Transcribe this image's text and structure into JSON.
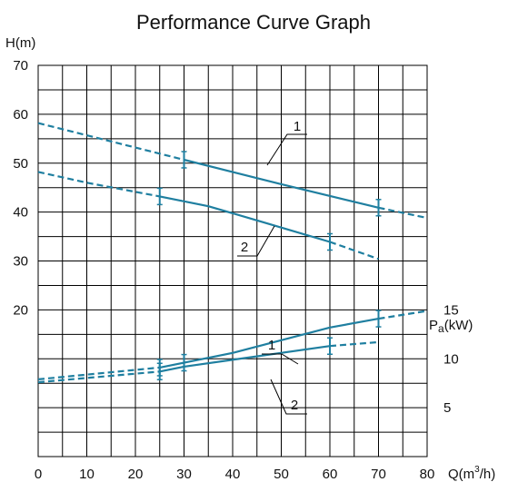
{
  "colors": {
    "curve": "#1f7fa0",
    "grid": "#000000",
    "text": "#111111"
  },
  "chart_data": {
    "type": "line",
    "title": "Performance Curve Graph",
    "grid": true,
    "xlabel": {
      "main": "Q(m",
      "sup": "3",
      "tail": "/h)"
    },
    "ylabel": "H(m)",
    "y2label": {
      "main": "P",
      "sub": "a",
      "tail": "(kW)"
    },
    "xlim": [
      0,
      80
    ],
    "ylim": [
      10,
      70
    ],
    "x_ticks": [
      "0",
      "10",
      "20",
      "30",
      "40",
      "50",
      "60",
      "70",
      "80"
    ],
    "y_ticks": [
      {
        "value": 70,
        "label": "70"
      },
      {
        "value": 60,
        "label": "60"
      },
      {
        "value": 50,
        "label": "50"
      },
      {
        "value": 40,
        "label": "40"
      },
      {
        "value": 30,
        "label": "30"
      },
      {
        "value": 20,
        "label": "20"
      }
    ],
    "power_ticks": [
      {
        "value": 15,
        "label": "15"
      },
      {
        "value": 10,
        "label": "10"
      },
      {
        "value": 5,
        "label": "5"
      }
    ],
    "power_ylim": [
      0,
      25
    ],
    "head_series": [
      {
        "name": "1",
        "solid": [
          [
            30,
            50.7
          ],
          [
            50,
            45.7
          ],
          [
            70,
            40.9
          ]
        ],
        "dashed_left": [
          [
            0,
            58.2
          ],
          [
            30,
            50.7
          ]
        ],
        "dashed_right": [
          [
            70,
            40.9
          ],
          [
            80,
            38.8
          ]
        ],
        "marks": [
          30,
          70
        ]
      },
      {
        "name": "2",
        "solid": [
          [
            25,
            43.2
          ],
          [
            35,
            41.2
          ],
          [
            45,
            38.3
          ],
          [
            60,
            33.9
          ]
        ],
        "dashed_left": [
          [
            0,
            48.2
          ],
          [
            10,
            46.0
          ],
          [
            25,
            43.2
          ]
        ],
        "dashed_right": [
          [
            60,
            33.9
          ],
          [
            70,
            30.4
          ]
        ],
        "marks": [
          25,
          60
        ]
      }
    ],
    "power_series": [
      {
        "name": "1",
        "solid": [
          [
            25,
            9.1
          ],
          [
            40,
            10.6
          ],
          [
            60,
            13.2
          ],
          [
            70,
            14.1
          ]
        ],
        "dashed_left": [
          [
            0,
            7.9
          ],
          [
            25,
            9.1
          ]
        ],
        "dashed_right": [
          [
            70,
            14.1
          ],
          [
            80,
            14.9
          ]
        ],
        "marks": [
          25,
          30,
          70
        ]
      },
      {
        "name": "2",
        "solid": [
          [
            25,
            8.7
          ],
          [
            30,
            9.2
          ],
          [
            60,
            11.3
          ]
        ],
        "dashed_left": [
          [
            0,
            7.6
          ],
          [
            25,
            8.7
          ]
        ],
        "dashed_right": [
          [
            60,
            11.3
          ],
          [
            70,
            11.7
          ]
        ],
        "marks": [
          25,
          60
        ]
      }
    ]
  }
}
